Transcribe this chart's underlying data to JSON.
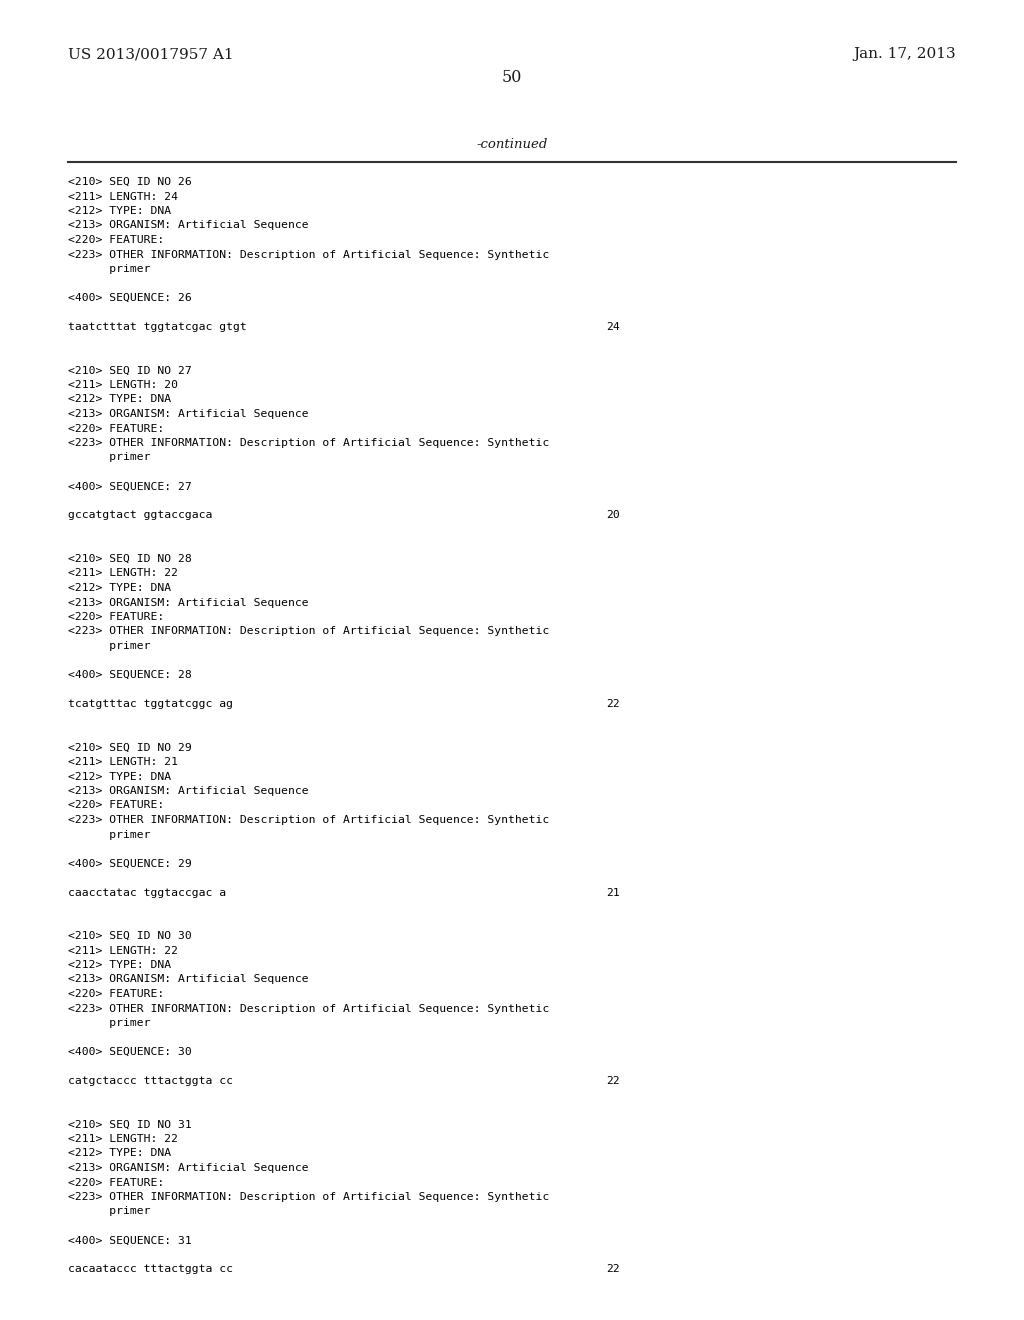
{
  "background_color": "#ffffff",
  "header_left": "US 2013/0017957 A1",
  "header_right": "Jan. 17, 2013",
  "page_number": "50",
  "continued_label": "-continued",
  "content_lines": [
    {
      "text": "<210> SEQ ID NO 26",
      "seq": false
    },
    {
      "text": "<211> LENGTH: 24",
      "seq": false
    },
    {
      "text": "<212> TYPE: DNA",
      "seq": false
    },
    {
      "text": "<213> ORGANISM: Artificial Sequence",
      "seq": false
    },
    {
      "text": "<220> FEATURE:",
      "seq": false
    },
    {
      "text": "<223> OTHER INFORMATION: Description of Artificial Sequence: Synthetic",
      "seq": false
    },
    {
      "text": "      primer",
      "seq": false
    },
    {
      "text": "",
      "seq": false
    },
    {
      "text": "<400> SEQUENCE: 26",
      "seq": false
    },
    {
      "text": "",
      "seq": false
    },
    {
      "text": "taatctttat tggtatcgac gtgt",
      "seq": true,
      "num": "24"
    },
    {
      "text": "",
      "seq": false
    },
    {
      "text": "",
      "seq": false
    },
    {
      "text": "<210> SEQ ID NO 27",
      "seq": false
    },
    {
      "text": "<211> LENGTH: 20",
      "seq": false
    },
    {
      "text": "<212> TYPE: DNA",
      "seq": false
    },
    {
      "text": "<213> ORGANISM: Artificial Sequence",
      "seq": false
    },
    {
      "text": "<220> FEATURE:",
      "seq": false
    },
    {
      "text": "<223> OTHER INFORMATION: Description of Artificial Sequence: Synthetic",
      "seq": false
    },
    {
      "text": "      primer",
      "seq": false
    },
    {
      "text": "",
      "seq": false
    },
    {
      "text": "<400> SEQUENCE: 27",
      "seq": false
    },
    {
      "text": "",
      "seq": false
    },
    {
      "text": "gccatgtact ggtaccgaca",
      "seq": true,
      "num": "20"
    },
    {
      "text": "",
      "seq": false
    },
    {
      "text": "",
      "seq": false
    },
    {
      "text": "<210> SEQ ID NO 28",
      "seq": false
    },
    {
      "text": "<211> LENGTH: 22",
      "seq": false
    },
    {
      "text": "<212> TYPE: DNA",
      "seq": false
    },
    {
      "text": "<213> ORGANISM: Artificial Sequence",
      "seq": false
    },
    {
      "text": "<220> FEATURE:",
      "seq": false
    },
    {
      "text": "<223> OTHER INFORMATION: Description of Artificial Sequence: Synthetic",
      "seq": false
    },
    {
      "text": "      primer",
      "seq": false
    },
    {
      "text": "",
      "seq": false
    },
    {
      "text": "<400> SEQUENCE: 28",
      "seq": false
    },
    {
      "text": "",
      "seq": false
    },
    {
      "text": "tcatgtttac tggtatcggc ag",
      "seq": true,
      "num": "22"
    },
    {
      "text": "",
      "seq": false
    },
    {
      "text": "",
      "seq": false
    },
    {
      "text": "<210> SEQ ID NO 29",
      "seq": false
    },
    {
      "text": "<211> LENGTH: 21",
      "seq": false
    },
    {
      "text": "<212> TYPE: DNA",
      "seq": false
    },
    {
      "text": "<213> ORGANISM: Artificial Sequence",
      "seq": false
    },
    {
      "text": "<220> FEATURE:",
      "seq": false
    },
    {
      "text": "<223> OTHER INFORMATION: Description of Artificial Sequence: Synthetic",
      "seq": false
    },
    {
      "text": "      primer",
      "seq": false
    },
    {
      "text": "",
      "seq": false
    },
    {
      "text": "<400> SEQUENCE: 29",
      "seq": false
    },
    {
      "text": "",
      "seq": false
    },
    {
      "text": "caacctatac tggtaccgac a",
      "seq": true,
      "num": "21"
    },
    {
      "text": "",
      "seq": false
    },
    {
      "text": "",
      "seq": false
    },
    {
      "text": "<210> SEQ ID NO 30",
      "seq": false
    },
    {
      "text": "<211> LENGTH: 22",
      "seq": false
    },
    {
      "text": "<212> TYPE: DNA",
      "seq": false
    },
    {
      "text": "<213> ORGANISM: Artificial Sequence",
      "seq": false
    },
    {
      "text": "<220> FEATURE:",
      "seq": false
    },
    {
      "text": "<223> OTHER INFORMATION: Description of Artificial Sequence: Synthetic",
      "seq": false
    },
    {
      "text": "      primer",
      "seq": false
    },
    {
      "text": "",
      "seq": false
    },
    {
      "text": "<400> SEQUENCE: 30",
      "seq": false
    },
    {
      "text": "",
      "seq": false
    },
    {
      "text": "catgctaccc tttactggta cc",
      "seq": true,
      "num": "22"
    },
    {
      "text": "",
      "seq": false
    },
    {
      "text": "",
      "seq": false
    },
    {
      "text": "<210> SEQ ID NO 31",
      "seq": false
    },
    {
      "text": "<211> LENGTH: 22",
      "seq": false
    },
    {
      "text": "<212> TYPE: DNA",
      "seq": false
    },
    {
      "text": "<213> ORGANISM: Artificial Sequence",
      "seq": false
    },
    {
      "text": "<220> FEATURE:",
      "seq": false
    },
    {
      "text": "<223> OTHER INFORMATION: Description of Artificial Sequence: Synthetic",
      "seq": false
    },
    {
      "text": "      primer",
      "seq": false
    },
    {
      "text": "",
      "seq": false
    },
    {
      "text": "<400> SEQUENCE: 31",
      "seq": false
    },
    {
      "text": "",
      "seq": false
    },
    {
      "text": "cacaataccc tttactggta cc",
      "seq": true,
      "num": "22"
    }
  ]
}
